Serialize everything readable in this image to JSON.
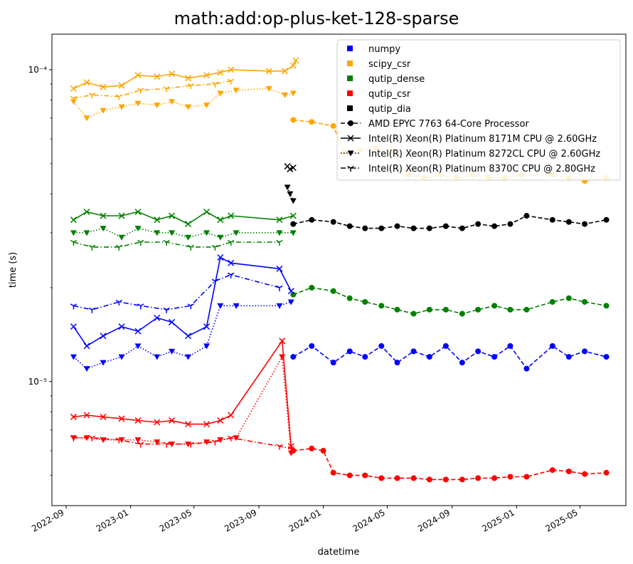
{
  "chart_data": {
    "type": "line",
    "title": "math:add:op-plus-ket-128-sparse",
    "xlabel": "datetime",
    "ylabel": "time (s)",
    "yscale": "log",
    "grid": false,
    "legend_position": "top-right",
    "xlim": [
      "2022-08-05",
      "2025-07-27"
    ],
    "ylim": [
      4e-06,
      0.00013
    ],
    "x_ticks": [
      "2022-09-01",
      "2023-01-01",
      "2023-05-01",
      "2023-09-01",
      "2024-01-01",
      "2024-05-01",
      "2024-09-01",
      "2025-01-01",
      "2025-05-01"
    ],
    "x_tick_labels": [
      "2022-09",
      "2023-01",
      "2023-05",
      "2023-09",
      "2024-01",
      "2024-05",
      "2024-09",
      "2025-01",
      "2025-05"
    ],
    "y_ticks": [
      1e-05,
      0.0001
    ],
    "y_tick_labels": [
      "10⁻⁵",
      "10⁻⁴"
    ],
    "legend": {
      "packages": [
        {
          "name": "numpy",
          "color": "#0000ff"
        },
        {
          "name": "scipy_csr",
          "color": "#ffa500"
        },
        {
          "name": "qutip_dense",
          "color": "#008000"
        },
        {
          "name": "qutip_csr",
          "color": "#ff0000"
        },
        {
          "name": "qutip_dia",
          "color": "#000000"
        }
      ],
      "cpus": [
        {
          "name": "AMD EPYC 7763 64-Core Processor",
          "linestyle": "dashed",
          "marker": "circle"
        },
        {
          "name": "Intel(R) Xeon(R) Platinum 8171M CPU @ 2.60GHz",
          "linestyle": "solid",
          "marker": "x"
        },
        {
          "name": "Intel(R) Xeon(R) Platinum 8272CL CPU @ 2.60GHz",
          "linestyle": "dotted",
          "marker": "triangle-down"
        },
        {
          "name": "Intel(R) Xeon(R) Platinum 8370C CPU @ 2.80GHz",
          "linestyle": "dashdot",
          "marker": "tri-down"
        }
      ]
    },
    "series": [
      {
        "package": "scipy_csr",
        "cpu": "Intel(R) Xeon(R) Platinum 8171M CPU @ 2.60GHz",
        "color": "#ffa500",
        "x": [
          "2022-09-15",
          "2022-10-10",
          "2022-11-10",
          "2022-12-15",
          "2023-01-15",
          "2023-02-20",
          "2023-03-20",
          "2023-04-20",
          "2023-05-25",
          "2023-06-20",
          "2023-07-10",
          "2023-09-20",
          "2023-10-20",
          "2023-11-05",
          "2023-11-10"
        ],
        "y": [
          8.7e-05,
          9.1e-05,
          8.8e-05,
          8.9e-05,
          9.6e-05,
          9.5e-05,
          9.7e-05,
          9.4e-05,
          9.6e-05,
          9.8e-05,
          0.0001,
          9.9e-05,
          9.9e-05,
          0.000103,
          0.000107
        ]
      },
      {
        "package": "scipy_csr",
        "cpu": "Intel(R) Xeon(R) Platinum 8272CL CPU @ 2.60GHz",
        "color": "#ffa500",
        "x": [
          "2022-09-15",
          "2022-10-10",
          "2022-11-10",
          "2022-12-15",
          "2023-01-15",
          "2023-02-20",
          "2023-03-20",
          "2023-04-20",
          "2023-05-25",
          "2023-06-20",
          "2023-07-20",
          "2023-09-20",
          "2023-10-20",
          "2023-11-05"
        ],
        "y": [
          7.9e-05,
          7e-05,
          7.4e-05,
          7.6e-05,
          7.8e-05,
          7.7e-05,
          7.9e-05,
          7.6e-05,
          7.7e-05,
          8.4e-05,
          8.6e-05,
          8.7e-05,
          8.3e-05,
          8.4e-05
        ]
      },
      {
        "package": "scipy_csr",
        "cpu": "Intel(R) Xeon(R) Platinum 8370C CPU @ 2.80GHz",
        "color": "#ffa500",
        "x": [
          "2022-09-15",
          "2022-10-20",
          "2022-12-10",
          "2023-01-20",
          "2023-03-10",
          "2023-04-25",
          "2023-06-10",
          "2023-07-10"
        ],
        "y": [
          8.1e-05,
          8.3e-05,
          8.2e-05,
          8.6e-05,
          8.7e-05,
          8.9e-05,
          9e-05,
          9.2e-05
        ]
      },
      {
        "package": "scipy_csr",
        "cpu": "AMD EPYC 7763 64-Core Processor",
        "color": "#ffa500",
        "x": [
          "2023-11-05",
          "2023-12-10",
          "2024-01-20",
          "2024-02-10",
          "2024-03-10",
          "2024-04-10",
          "2024-05-10",
          "2024-06-10",
          "2024-07-10",
          "2024-08-10",
          "2024-09-10",
          "2024-10-10",
          "2024-11-10",
          "2024-12-10",
          "2025-01-10",
          "2025-03-10",
          "2025-04-10",
          "2025-05-10",
          "2025-06-20"
        ],
        "y": [
          6.9e-05,
          6.8e-05,
          6.6e-05,
          5.4e-05,
          5.5e-05,
          5.6e-05,
          5.5e-05,
          4.6e-05,
          4.5e-05,
          4.6e-05,
          4.5e-05,
          4.6e-05,
          4.5e-05,
          4.5e-05,
          4.6e-05,
          4.6e-05,
          4.5e-05,
          4.4e-05,
          4.5e-05
        ]
      },
      {
        "package": "qutip_dense",
        "cpu": "Intel(R) Xeon(R) Platinum 8171M CPU @ 2.60GHz",
        "color": "#008000",
        "x": [
          "2022-09-15",
          "2022-10-10",
          "2022-11-10",
          "2022-12-15",
          "2023-01-15",
          "2023-02-20",
          "2023-03-20",
          "2023-04-20",
          "2023-05-25",
          "2023-06-20",
          "2023-07-10",
          "2023-10-10",
          "2023-11-05"
        ],
        "y": [
          3.3e-05,
          3.5e-05,
          3.4e-05,
          3.4e-05,
          3.5e-05,
          3.3e-05,
          3.4e-05,
          3.2e-05,
          3.5e-05,
          3.3e-05,
          3.4e-05,
          3.3e-05,
          3.4e-05
        ]
      },
      {
        "package": "qutip_dense",
        "cpu": "Intel(R) Xeon(R) Platinum 8272CL CPU @ 2.60GHz",
        "color": "#008000",
        "x": [
          "2022-09-15",
          "2022-10-10",
          "2022-11-10",
          "2022-12-15",
          "2023-01-15",
          "2023-02-20",
          "2023-03-20",
          "2023-04-20",
          "2023-05-25",
          "2023-06-20",
          "2023-07-20",
          "2023-10-10",
          "2023-11-05"
        ],
        "y": [
          3e-05,
          3e-05,
          3.1e-05,
          2.9e-05,
          3.1e-05,
          3e-05,
          3e-05,
          2.9e-05,
          3e-05,
          2.9e-05,
          3e-05,
          3e-05,
          3e-05
        ]
      },
      {
        "package": "qutip_dense",
        "cpu": "Intel(R) Xeon(R) Platinum 8370C CPU @ 2.80GHz",
        "color": "#008000",
        "x": [
          "2022-09-15",
          "2022-10-20",
          "2022-12-10",
          "2023-01-20",
          "2023-03-10",
          "2023-04-25",
          "2023-06-10",
          "2023-07-10",
          "2023-10-10"
        ],
        "y": [
          2.8e-05,
          2.7e-05,
          2.7e-05,
          2.8e-05,
          2.8e-05,
          2.7e-05,
          2.7e-05,
          2.8e-05,
          2.8e-05
        ]
      },
      {
        "package": "qutip_dense",
        "cpu": "AMD EPYC 7763 64-Core Processor",
        "color": "#008000",
        "x": [
          "2023-11-05",
          "2023-12-10",
          "2024-01-20",
          "2024-02-20",
          "2024-03-20",
          "2024-04-20",
          "2024-05-20",
          "2024-06-20",
          "2024-07-20",
          "2024-08-20",
          "2024-09-20",
          "2024-10-20",
          "2024-11-20",
          "2024-12-20",
          "2025-01-20",
          "2025-03-10",
          "2025-04-10",
          "2025-05-10",
          "2025-06-20"
        ],
        "y": [
          1.9e-05,
          2e-05,
          1.95e-05,
          1.85e-05,
          1.8e-05,
          1.75e-05,
          1.7e-05,
          1.65e-05,
          1.7e-05,
          1.7e-05,
          1.65e-05,
          1.7e-05,
          1.75e-05,
          1.7e-05,
          1.7e-05,
          1.8e-05,
          1.85e-05,
          1.8e-05,
          1.75e-05
        ]
      },
      {
        "package": "numpy",
        "cpu": "Intel(R) Xeon(R) Platinum 8171M CPU @ 2.60GHz",
        "color": "#0000ff",
        "x": [
          "2022-09-15",
          "2022-10-10",
          "2022-11-10",
          "2022-12-15",
          "2023-01-15",
          "2023-02-20",
          "2023-03-20",
          "2023-04-20",
          "2023-05-25",
          "2023-06-20",
          "2023-07-10",
          "2023-10-10",
          "2023-11-01"
        ],
        "y": [
          1.5e-05,
          1.3e-05,
          1.4e-05,
          1.5e-05,
          1.45e-05,
          1.6e-05,
          1.55e-05,
          1.4e-05,
          1.5e-05,
          2.5e-05,
          2.4e-05,
          2.3e-05,
          1.95e-05
        ]
      },
      {
        "package": "numpy",
        "cpu": "Intel(R) Xeon(R) Platinum 8272CL CPU @ 2.60GHz",
        "color": "#0000ff",
        "x": [
          "2022-09-15",
          "2022-10-10",
          "2022-11-10",
          "2022-12-15",
          "2023-01-15",
          "2023-02-20",
          "2023-03-20",
          "2023-04-20",
          "2023-05-25",
          "2023-06-20",
          "2023-07-20",
          "2023-10-10",
          "2023-11-01"
        ],
        "y": [
          1.2e-05,
          1.1e-05,
          1.15e-05,
          1.2e-05,
          1.3e-05,
          1.2e-05,
          1.25e-05,
          1.2e-05,
          1.3e-05,
          1.75e-05,
          1.75e-05,
          1.75e-05,
          1.8e-05
        ]
      },
      {
        "package": "numpy",
        "cpu": "Intel(R) Xeon(R) Platinum 8370C CPU @ 2.80GHz",
        "color": "#0000ff",
        "x": [
          "2022-09-15",
          "2022-10-20",
          "2022-12-10",
          "2023-01-20",
          "2023-03-10",
          "2023-04-25",
          "2023-06-10",
          "2023-07-10",
          "2023-10-10"
        ],
        "y": [
          1.75e-05,
          1.7e-05,
          1.8e-05,
          1.75e-05,
          1.7e-05,
          1.75e-05,
          2.1e-05,
          2.2e-05,
          2e-05
        ]
      },
      {
        "package": "numpy",
        "cpu": "AMD EPYC 7763 64-Core Processor",
        "color": "#0000ff",
        "x": [
          "2023-11-05",
          "2023-12-10",
          "2024-01-20",
          "2024-02-20",
          "2024-03-20",
          "2024-04-20",
          "2024-05-20",
          "2024-06-20",
          "2024-07-20",
          "2024-08-20",
          "2024-09-20",
          "2024-10-20",
          "2024-11-20",
          "2024-12-20",
          "2025-01-20",
          "2025-03-10",
          "2025-04-10",
          "2025-05-10",
          "2025-06-20"
        ],
        "y": [
          1.2e-05,
          1.3e-05,
          1.15e-05,
          1.25e-05,
          1.2e-05,
          1.3e-05,
          1.15e-05,
          1.25e-05,
          1.2e-05,
          1.3e-05,
          1.15e-05,
          1.25e-05,
          1.2e-05,
          1.3e-05,
          1.1e-05,
          1.3e-05,
          1.2e-05,
          1.25e-05,
          1.2e-05
        ]
      },
      {
        "package": "qutip_csr",
        "cpu": "Intel(R) Xeon(R) Platinum 8171M CPU @ 2.60GHz",
        "color": "#ff0000",
        "x": [
          "2022-09-15",
          "2022-10-10",
          "2022-11-10",
          "2022-12-15",
          "2023-01-15",
          "2023-02-20",
          "2023-03-20",
          "2023-04-20",
          "2023-05-25",
          "2023-06-20",
          "2023-07-10",
          "2023-10-15",
          "2023-11-01"
        ],
        "y": [
          7.7e-06,
          7.8e-06,
          7.7e-06,
          7.6e-06,
          7.5e-06,
          7.4e-06,
          7.5e-06,
          7.3e-06,
          7.3e-06,
          7.5e-06,
          7.8e-06,
          1.35e-05,
          6.2e-06
        ]
      },
      {
        "package": "qutip_csr",
        "cpu": "Intel(R) Xeon(R) Platinum 8272CL CPU @ 2.60GHz",
        "color": "#ff0000",
        "x": [
          "2022-09-15",
          "2022-10-10",
          "2022-11-10",
          "2022-12-15",
          "2023-01-15",
          "2023-02-20",
          "2023-03-20",
          "2023-04-20",
          "2023-05-25",
          "2023-06-20",
          "2023-07-20",
          "2023-10-15",
          "2023-11-01"
        ],
        "y": [
          6.6e-06,
          6.6e-06,
          6.5e-06,
          6.5e-06,
          6.5e-06,
          6.4e-06,
          6.3e-06,
          6.3e-06,
          6.4e-06,
          6.5e-06,
          6.6e-06,
          1.2e-05,
          5.9e-06
        ]
      },
      {
        "package": "qutip_csr",
        "cpu": "Intel(R) Xeon(R) Platinum 8370C CPU @ 2.80GHz",
        "color": "#ff0000",
        "x": [
          "2022-09-15",
          "2022-10-20",
          "2022-12-10",
          "2023-01-20",
          "2023-03-10",
          "2023-04-25",
          "2023-06-10",
          "2023-07-10",
          "2023-10-10",
          "2023-11-01"
        ],
        "y": [
          6.6e-06,
          6.6e-06,
          6.5e-06,
          6.3e-06,
          6.3e-06,
          6.3e-06,
          6.4e-06,
          6.6e-06,
          6.2e-06,
          6.1e-06
        ]
      },
      {
        "package": "qutip_csr",
        "cpu": "AMD EPYC 7763 64-Core Processor",
        "color": "#ff0000",
        "x": [
          "2023-11-05",
          "2023-12-10",
          "2024-01-01",
          "2024-01-20",
          "2024-02-20",
          "2024-03-20",
          "2024-04-20",
          "2024-05-20",
          "2024-06-20",
          "2024-07-20",
          "2024-08-20",
          "2024-09-20",
          "2024-10-20",
          "2024-11-20",
          "2024-12-20",
          "2025-01-20",
          "2025-03-10",
          "2025-04-10",
          "2025-05-10",
          "2025-06-20"
        ],
        "y": [
          6e-06,
          6.1e-06,
          6e-06,
          5.1e-06,
          5e-06,
          5e-06,
          4.9e-06,
          4.9e-06,
          4.9e-06,
          4.85e-06,
          4.85e-06,
          4.85e-06,
          4.9e-06,
          4.9e-06,
          4.95e-06,
          4.95e-06,
          5.2e-06,
          5.15e-06,
          5.05e-06,
          5.1e-06
        ]
      },
      {
        "package": "qutip_dia",
        "cpu": "AMD EPYC 7763 64-Core Processor",
        "color": "#000000",
        "x": [
          "2023-11-05",
          "2023-12-10",
          "2024-01-20",
          "2024-02-20",
          "2024-03-20",
          "2024-04-20",
          "2024-05-20",
          "2024-06-20",
          "2024-07-20",
          "2024-08-20",
          "2024-09-20",
          "2024-10-20",
          "2024-11-20",
          "2024-12-20",
          "2025-01-20",
          "2025-03-10",
          "2025-04-10",
          "2025-05-10",
          "2025-06-20"
        ],
        "y": [
          3.2e-05,
          3.3e-05,
          3.25e-05,
          3.15e-05,
          3.1e-05,
          3.1e-05,
          3.15e-05,
          3.1e-05,
          3.1e-05,
          3.15e-05,
          3.1e-05,
          3.2e-05,
          3.15e-05,
          3.2e-05,
          3.4e-05,
          3.3e-05,
          3.25e-05,
          3.2e-05,
          3.3e-05
        ]
      },
      {
        "package": "qutip_dia",
        "cpu": "Intel(R) Xeon(R) Platinum 8171M CPU @ 2.60GHz",
        "color": "#000000",
        "x": [
          "2023-10-25",
          "2023-10-30",
          "2023-11-05"
        ],
        "y": [
          4.9e-05,
          4.8e-05,
          4.85e-05
        ]
      },
      {
        "package": "qutip_dia",
        "cpu": "Intel(R) Xeon(R) Platinum 8272CL CPU @ 2.60GHz",
        "color": "#000000",
        "x": [
          "2023-10-25",
          "2023-10-30",
          "2023-11-05"
        ],
        "y": [
          4.2e-05,
          4e-05,
          3.8e-05
        ]
      }
    ]
  }
}
